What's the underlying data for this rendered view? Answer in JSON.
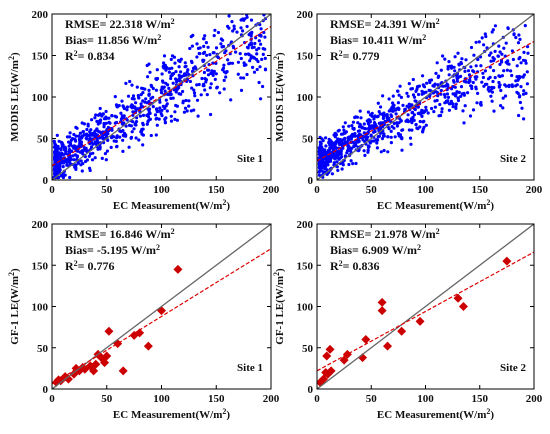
{
  "chart_data": [
    {
      "type": "scatter",
      "panel": "MODIS vs EC Site 1",
      "xlabel": "EC Measurement(W/m²)",
      "ylabel": "MODIS LE(W/m²)",
      "xlim": [
        0,
        200
      ],
      "ylim": [
        0,
        200
      ],
      "xticks": [
        "0",
        "50",
        "100",
        "150",
        "200"
      ],
      "yticks": [
        "0",
        "50",
        "100",
        "150",
        "200"
      ],
      "stats": [
        "RMSE= 22.318 W/m²",
        "Bias= 11.856 W/m²",
        "R²= 0.834"
      ],
      "site_label": "Site 1",
      "marker": "dot",
      "color": "#0000ff",
      "cloud": {
        "n": 900,
        "x_range": [
          2,
          195
        ],
        "fit": {
          "slope": 0.84,
          "intercept": 17
        },
        "curve": "saturating",
        "max": 165,
        "spread": 22,
        "seed": 11
      },
      "points": [],
      "one_to_one": true,
      "fit_line": {
        "slope": 0.84,
        "intercept": 17
      },
      "grid": false
    },
    {
      "type": "scatter",
      "panel": "MODIS vs EC Site 2",
      "xlabel": "EC Measurement(W/m²)",
      "ylabel": "MODIS LE(W/m²)",
      "xlim": [
        0,
        200
      ],
      "ylim": [
        0,
        200
      ],
      "xticks": [
        "0",
        "50",
        "100",
        "150",
        "200"
      ],
      "yticks": [
        "0",
        "50",
        "100",
        "150",
        "200"
      ],
      "stats": [
        "RMSE= 24.391 W/m²",
        "Bias= 10.411 W/m²",
        "R²= 0.779"
      ],
      "site_label": "Site 2",
      "marker": "dot",
      "color": "#0000ff",
      "cloud": {
        "n": 900,
        "x_range": [
          2,
          195
        ],
        "fit": {
          "slope": 0.72,
          "intercept": 23
        },
        "curve": "saturating",
        "max": 135,
        "spread": 20,
        "seed": 23
      },
      "points": [],
      "one_to_one": true,
      "fit_line": {
        "slope": 0.72,
        "intercept": 23
      },
      "grid": false
    },
    {
      "type": "scatter",
      "panel": "GF-1 vs EC Site 1",
      "xlabel": "EC Measurement(W/m²)",
      "ylabel": "GF-1 LE(W/m²)",
      "xlim": [
        0,
        200
      ],
      "ylim": [
        0,
        200
      ],
      "xticks": [
        "0",
        "50",
        "100",
        "150",
        "200"
      ],
      "yticks": [
        "0",
        "50",
        "100",
        "150",
        "200"
      ],
      "stats": [
        "RMSE= 16.846 W/m²",
        "Bias= -5.195 W/m²",
        "R²= 0.776"
      ],
      "site_label": "Site 1",
      "marker": "diamond",
      "color": "#cc0000",
      "cloud": null,
      "points": [
        [
          4,
          8
        ],
        [
          6,
          11
        ],
        [
          8,
          10
        ],
        [
          12,
          15
        ],
        [
          15,
          12
        ],
        [
          20,
          18
        ],
        [
          22,
          25
        ],
        [
          25,
          22
        ],
        [
          28,
          26
        ],
        [
          30,
          24
        ],
        [
          35,
          28
        ],
        [
          38,
          22
        ],
        [
          40,
          30
        ],
        [
          42,
          42
        ],
        [
          45,
          38
        ],
        [
          48,
          32
        ],
        [
          50,
          40
        ],
        [
          52,
          70
        ],
        [
          60,
          55
        ],
        [
          65,
          22
        ],
        [
          75,
          65
        ],
        [
          80,
          68
        ],
        [
          88,
          52
        ],
        [
          100,
          95
        ],
        [
          115,
          145
        ]
      ],
      "one_to_one": true,
      "fit_line": {
        "slope": 0.82,
        "intercept": 6
      },
      "grid": false
    },
    {
      "type": "scatter",
      "panel": "GF-1 vs EC Site 2",
      "xlabel": "EC Measurement(W/m²)",
      "ylabel": "GF-1 LE(W/m²)",
      "xlim": [
        0,
        200
      ],
      "ylim": [
        0,
        200
      ],
      "xticks": [
        "0",
        "50",
        "100",
        "150",
        "200"
      ],
      "yticks": [
        "0",
        "50",
        "100",
        "150",
        "200"
      ],
      "stats": [
        "RMSE= 21.978 W/m²",
        "Bias= 6.909 W/m²",
        "R²= 0.836"
      ],
      "site_label": "Site 2",
      "marker": "diamond",
      "color": "#cc0000",
      "cloud": null,
      "points": [
        [
          3,
          8
        ],
        [
          6,
          12
        ],
        [
          8,
          20
        ],
        [
          9,
          40
        ],
        [
          10,
          18
        ],
        [
          12,
          48
        ],
        [
          13,
          22
        ],
        [
          25,
          35
        ],
        [
          28,
          42
        ],
        [
          42,
          38
        ],
        [
          45,
          60
        ],
        [
          60,
          95
        ],
        [
          60,
          105
        ],
        [
          65,
          52
        ],
        [
          78,
          70
        ],
        [
          95,
          82
        ],
        [
          130,
          110
        ],
        [
          135,
          100
        ],
        [
          175,
          155
        ]
      ],
      "one_to_one": true,
      "fit_line": {
        "slope": 0.72,
        "intercept": 22
      },
      "grid": false
    }
  ]
}
